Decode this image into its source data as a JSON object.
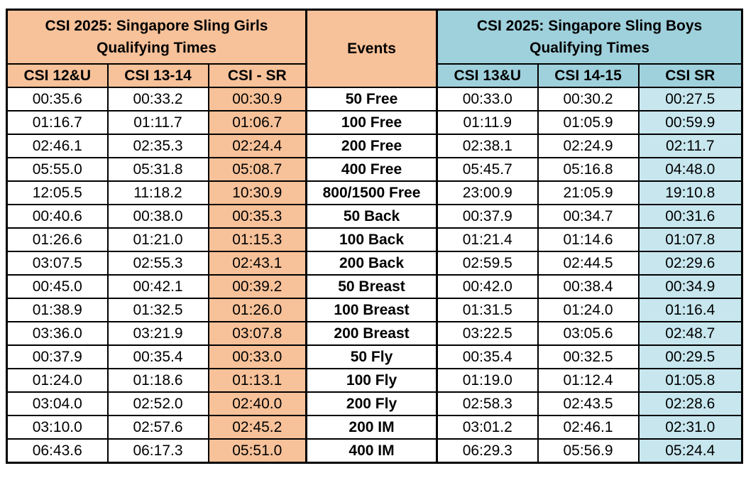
{
  "girls": {
    "title_line1": "CSI 2025: Singapore Sling Girls",
    "title_line2": "Qualifying Times",
    "cols": [
      "CSI 12&U",
      "CSI 13-14",
      "CSI - SR"
    ]
  },
  "events_header": "Events",
  "boys": {
    "title_line1": "CSI 2025: Singapore Sling Boys",
    "title_line2": "Qualifying Times",
    "cols": [
      "CSI 13&U",
      "CSI 14-15",
      "CSI SR"
    ]
  },
  "colors": {
    "girls_accent": "#f7c199",
    "boys_accent": "#9fd1dc",
    "boys_sr_column": "#c7e6ee"
  },
  "rows": [
    {
      "g1": "00:35.6",
      "g2": "00:33.2",
      "g3": "00:30.9",
      "event": "50 Free",
      "b1": "00:33.0",
      "b2": "00:30.2",
      "b3": "00:27.5"
    },
    {
      "g1": "01:16.7",
      "g2": "01:11.7",
      "g3": "01:06.7",
      "event": "100 Free",
      "b1": "01:11.9",
      "b2": "01:05.9",
      "b3": "00:59.9"
    },
    {
      "g1": "02:46.1",
      "g2": "02:35.3",
      "g3": "02:24.4",
      "event": "200 Free",
      "b1": "02:38.1",
      "b2": "02:24.9",
      "b3": "02:11.7"
    },
    {
      "g1": "05:55.0",
      "g2": "05:31.8",
      "g3": "05:08.7",
      "event": "400 Free",
      "b1": "05:45.7",
      "b2": "05:16.8",
      "b3": "04:48.0"
    },
    {
      "g1": "12:05.5",
      "g2": "11:18.2",
      "g3": "10:30.9",
      "event": "800/1500 Free",
      "b1": "23:00.9",
      "b2": "21:05.9",
      "b3": "19:10.8"
    },
    {
      "g1": "00:40.6",
      "g2": "00:38.0",
      "g3": "00:35.3",
      "event": "50 Back",
      "b1": "00:37.9",
      "b2": "00:34.7",
      "b3": "00:31.6"
    },
    {
      "g1": "01:26.6",
      "g2": "01:21.0",
      "g3": "01:15.3",
      "event": "100 Back",
      "b1": "01:21.4",
      "b2": "01:14.6",
      "b3": "01:07.8"
    },
    {
      "g1": "03:07.5",
      "g2": "02:55.3",
      "g3": "02:43.1",
      "event": "200 Back",
      "b1": "02:59.5",
      "b2": "02:44.5",
      "b3": "02:29.6"
    },
    {
      "g1": "00:45.0",
      "g2": "00:42.1",
      "g3": "00:39.2",
      "event": "50 Breast",
      "b1": "00:42.0",
      "b2": "00:38.4",
      "b3": "00:34.9"
    },
    {
      "g1": "01:38.9",
      "g2": "01:32.5",
      "g3": "01:26.0",
      "event": "100 Breast",
      "b1": "01:31.5",
      "b2": "01:24.0",
      "b3": "01:16.4"
    },
    {
      "g1": "03:36.0",
      "g2": "03:21.9",
      "g3": "03:07.8",
      "event": "200 Breast",
      "b1": "03:22.5",
      "b2": "03:05.6",
      "b3": "02:48.7"
    },
    {
      "g1": "00:37.9",
      "g2": "00:35.4",
      "g3": "00:33.0",
      "event": "50 Fly",
      "b1": "00:35.4",
      "b2": "00:32.5",
      "b3": "00:29.5"
    },
    {
      "g1": "01:24.0",
      "g2": "01:18.6",
      "g3": "01:13.1",
      "event": "100 Fly",
      "b1": "01:19.0",
      "b2": "01:12.4",
      "b3": "01:05.8"
    },
    {
      "g1": "03:04.0",
      "g2": "02:52.0",
      "g3": "02:40.0",
      "event": "200 Fly",
      "b1": "02:58.3",
      "b2": "02:43.5",
      "b3": "02:28.6"
    },
    {
      "g1": "03:10.0",
      "g2": "02:57.6",
      "g3": "02:45.2",
      "event": "200 IM",
      "b1": "03:01.2",
      "b2": "02:46.1",
      "b3": "02:31.0"
    },
    {
      "g1": "06:43.6",
      "g2": "06:17.3",
      "g3": "05:51.0",
      "event": "400 IM",
      "b1": "06:29.3",
      "b2": "05:56.9",
      "b3": "05:24.4"
    }
  ]
}
